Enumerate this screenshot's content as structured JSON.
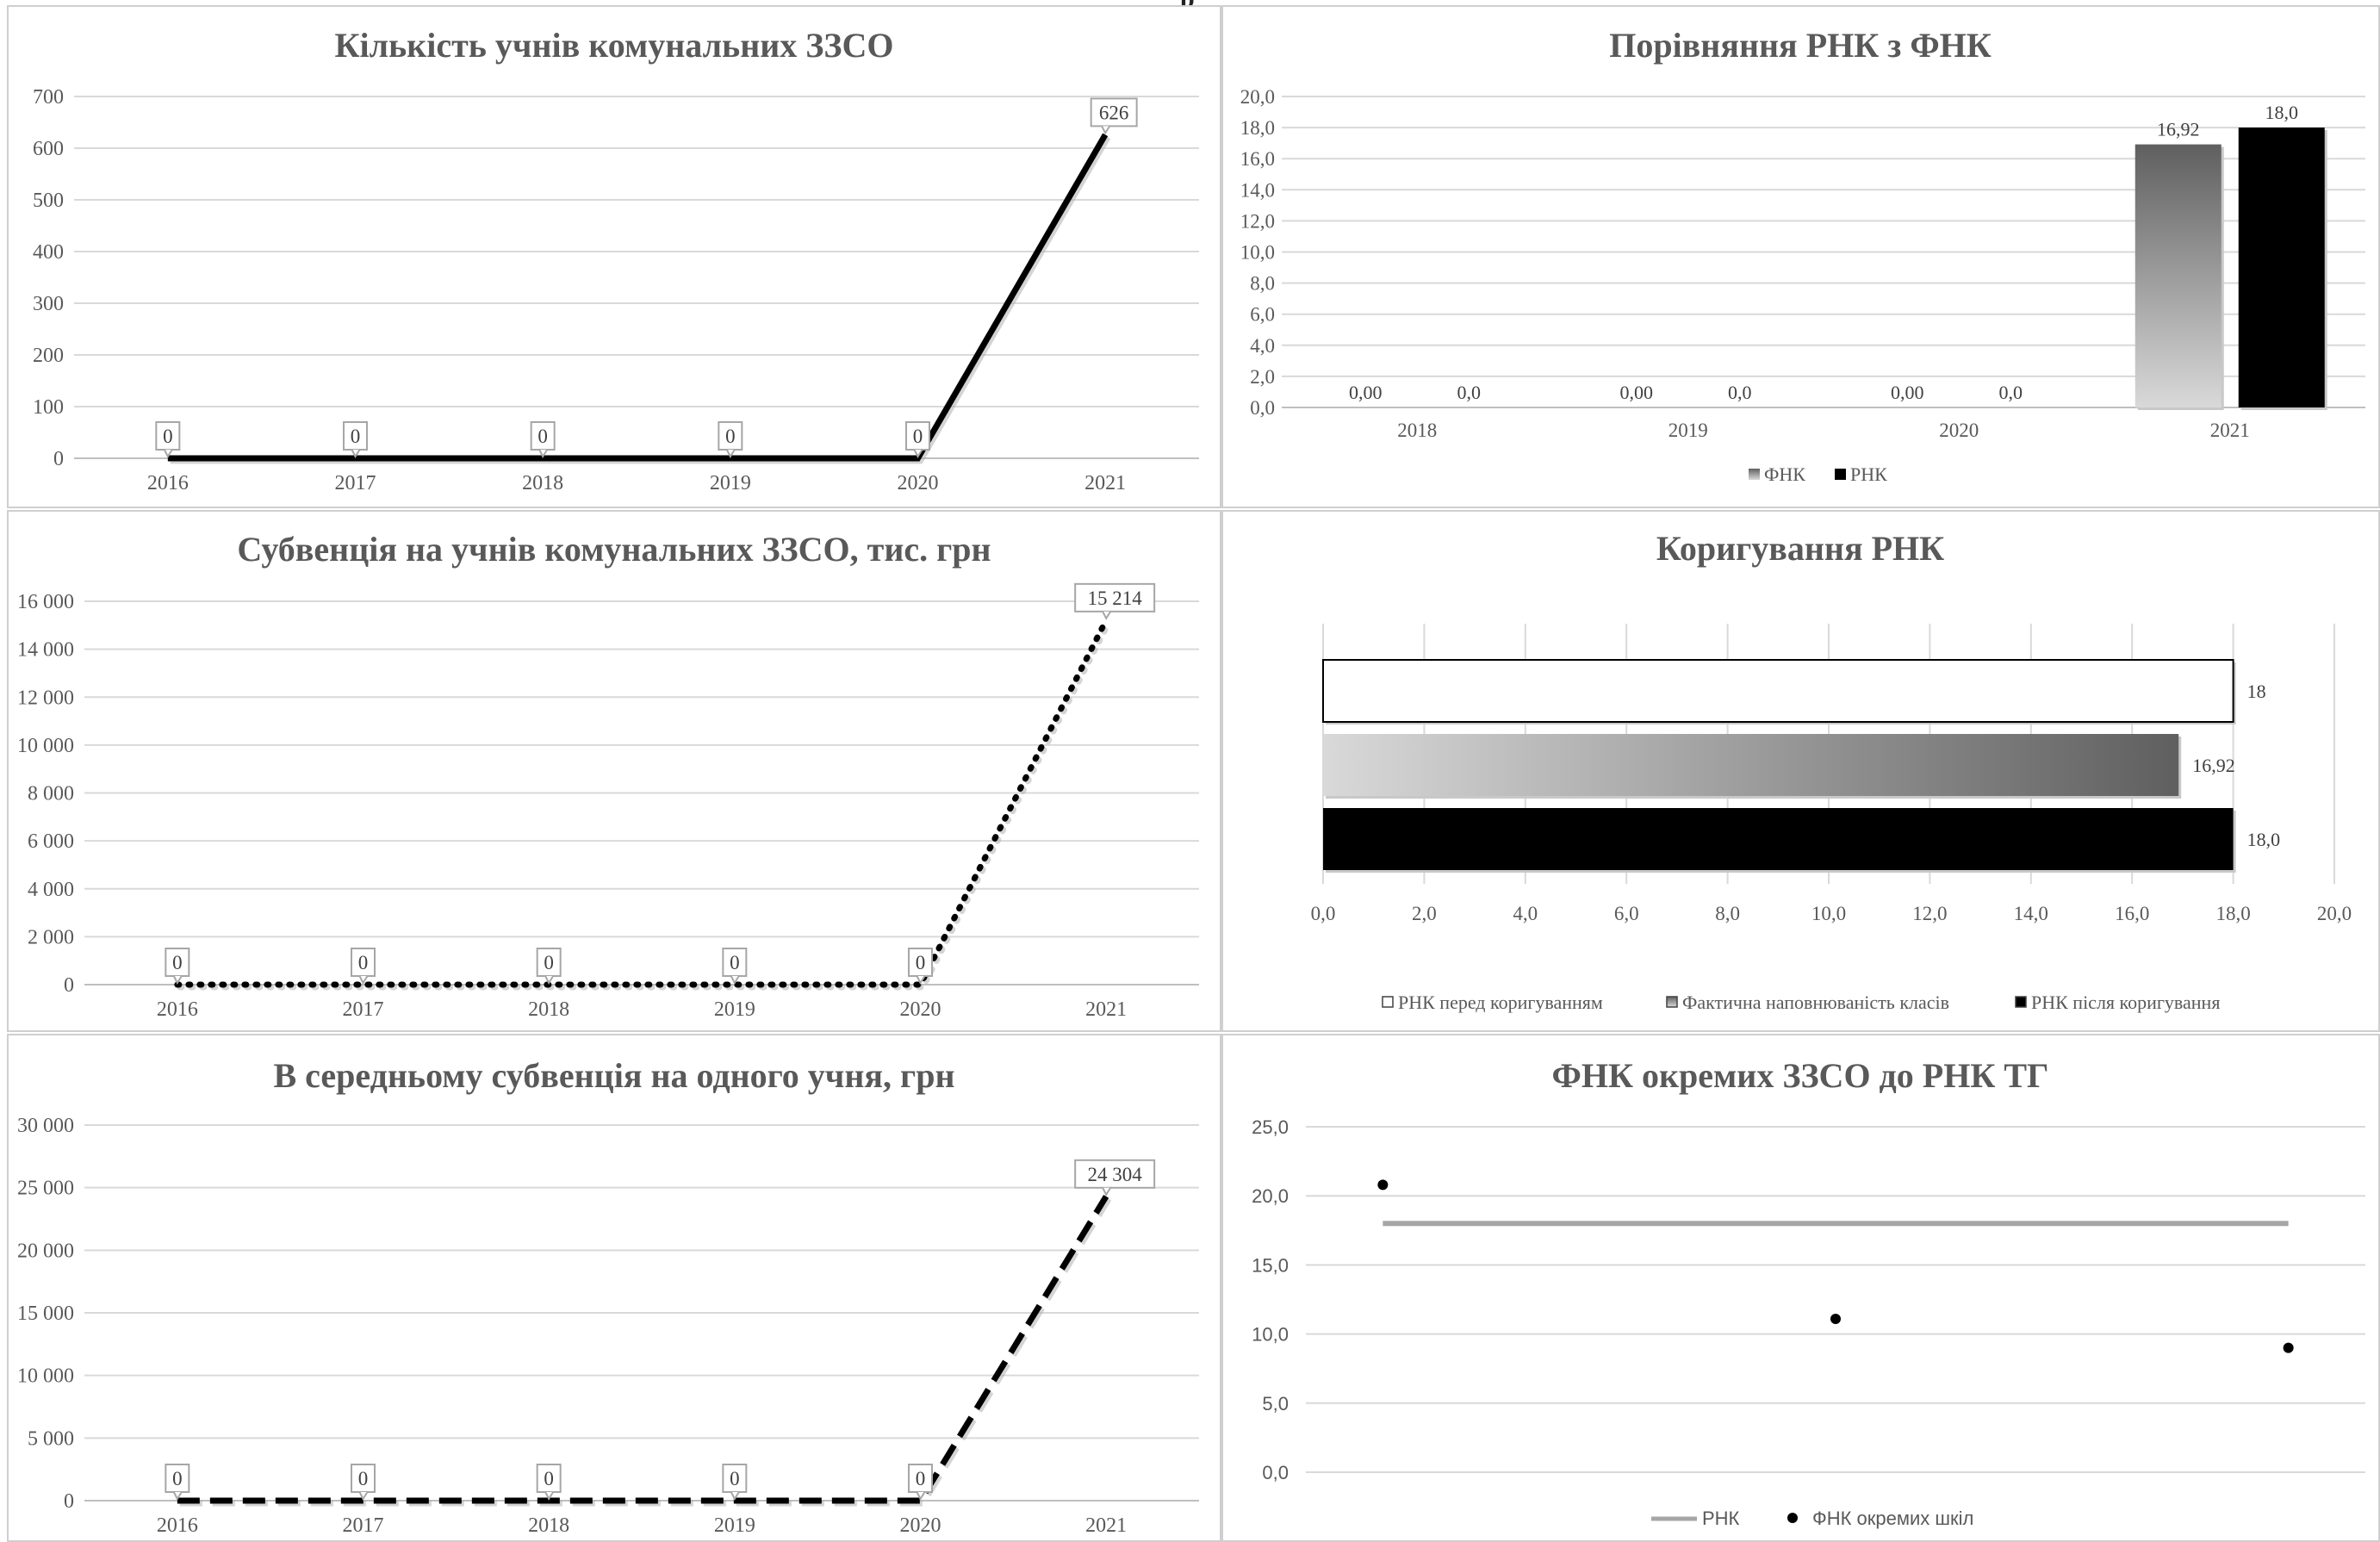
{
  "page": {
    "top_cut_text": "р"
  },
  "chart_data": [
    {
      "id": "c1",
      "type": "line",
      "title": "Кількість учнів комунальних ЗЗСО",
      "categories": [
        "2016",
        "2017",
        "2018",
        "2019",
        "2020",
        "2021"
      ],
      "series": [
        {
          "values": [
            0,
            0,
            0,
            0,
            0,
            626
          ],
          "style": "solid",
          "color": "#000000"
        }
      ],
      "data_labels": [
        "0",
        "0",
        "0",
        "0",
        "0",
        "626"
      ],
      "y_ticks": [
        "0",
        "100",
        "200",
        "300",
        "400",
        "500",
        "600",
        "700"
      ],
      "ylim": [
        0,
        700
      ],
      "grid": true
    },
    {
      "id": "c2",
      "type": "bar",
      "title": "Порівняння РНК з ФНК",
      "categories": [
        "2018",
        "2019",
        "2020",
        "2021"
      ],
      "series": [
        {
          "name": "ФНК",
          "values": [
            0.0,
            0.0,
            0.0,
            16.92
          ],
          "labels": [
            "0,00",
            "0,00",
            "0,00",
            "16,92"
          ],
          "color": "gradient-gray"
        },
        {
          "name": "РНК",
          "values": [
            0.0,
            0.0,
            0.0,
            18.0
          ],
          "labels": [
            "0,0",
            "0,0",
            "0,0",
            "18,0"
          ],
          "color": "#000000"
        }
      ],
      "y_ticks": [
        "0,0",
        "2,0",
        "4,0",
        "6,0",
        "8,0",
        "10,0",
        "12,0",
        "14,0",
        "16,0",
        "18,0",
        "20,0"
      ],
      "ylim": [
        0,
        20
      ],
      "grid": true,
      "legend": "bottom"
    },
    {
      "id": "c3",
      "type": "line",
      "title": "Субвенція на учнів комунальних ЗЗСО, тис. грн",
      "categories": [
        "2016",
        "2017",
        "2018",
        "2019",
        "2020",
        "2021"
      ],
      "series": [
        {
          "values": [
            0,
            0,
            0,
            0,
            0,
            15214
          ],
          "style": "dotted",
          "color": "#000000"
        }
      ],
      "data_labels": [
        "0",
        "0",
        "0",
        "0",
        "0",
        "15 214"
      ],
      "y_ticks": [
        "0",
        "2 000",
        "4 000",
        "6 000",
        "8 000",
        "10 000",
        "12 000",
        "14 000",
        "16 000"
      ],
      "ylim": [
        0,
        16000
      ],
      "grid": true
    },
    {
      "id": "c4",
      "type": "bar",
      "orientation": "horizontal",
      "title": "Коригування РНК",
      "series": [
        {
          "name": "РНК перед коригуванням",
          "value": 18,
          "label": "18",
          "color": "#ffffff"
        },
        {
          "name": "Фактична наповнюваність класів",
          "value": 16.92,
          "label": "16,92",
          "color": "gradient-gray"
        },
        {
          "name": "РНК після коригування",
          "value": 18.0,
          "label": "18,0",
          "color": "#000000"
        }
      ],
      "x_ticks": [
        "0,0",
        "2,0",
        "4,0",
        "6,0",
        "8,0",
        "10,0",
        "12,0",
        "14,0",
        "16,0",
        "18,0",
        "20,0"
      ],
      "xlim": [
        0,
        20
      ],
      "grid": true,
      "legend": "bottom"
    },
    {
      "id": "c5",
      "type": "line",
      "title": "В середньому субвенція на одного учня, грн",
      "categories": [
        "2016",
        "2017",
        "2018",
        "2019",
        "2020",
        "2021"
      ],
      "series": [
        {
          "values": [
            0,
            0,
            0,
            0,
            0,
            24304
          ],
          "style": "dashed",
          "color": "#000000"
        }
      ],
      "data_labels": [
        "0",
        "0",
        "0",
        "0",
        "0",
        "24 304"
      ],
      "y_ticks": [
        "0",
        "5 000",
        "10 000",
        "15 000",
        "20 000",
        "25 000",
        "30 000"
      ],
      "ylim": [
        0,
        30000
      ],
      "grid": true
    },
    {
      "id": "c6",
      "type": "scatter",
      "title": "ФНК окремих ЗЗСО до РНК ТГ",
      "series": [
        {
          "name": "РНК",
          "type": "line",
          "x": [
            1,
            3
          ],
          "y": [
            18.0,
            18.0
          ],
          "color": "#a6a6a6"
        },
        {
          "name": "ФНК окремих шкіл",
          "type": "scatter",
          "x": [
            1,
            2,
            3
          ],
          "y": [
            20.8,
            11.1,
            9.0
          ],
          "color": "#000000"
        }
      ],
      "y_ticks": [
        "0,0",
        "5,0",
        "10,0",
        "15,0",
        "20,0",
        "25,0"
      ],
      "ylim": [
        0,
        25
      ],
      "xlim": [
        0.83,
        3.17
      ],
      "grid": true,
      "legend": "bottom"
    }
  ]
}
